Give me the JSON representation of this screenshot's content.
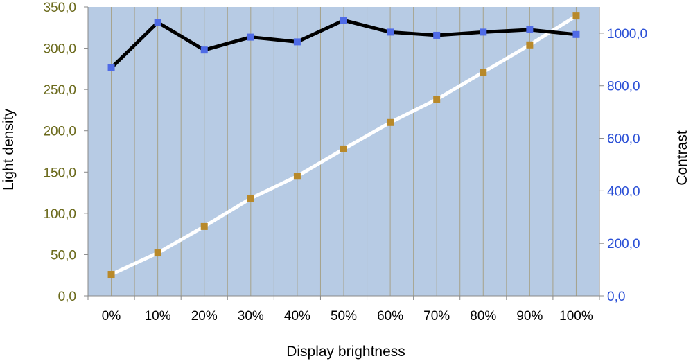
{
  "chart_data": {
    "type": "line",
    "xlabel": "Display brightness",
    "ylabel_left": "Light density",
    "ylabel_right": "Contrast",
    "categories": [
      "0%",
      "10%",
      "20%",
      "30%",
      "40%",
      "50%",
      "60%",
      "70%",
      "80%",
      "90%",
      "100%"
    ],
    "y_left": {
      "range": [
        0,
        350
      ],
      "ticks": [
        0,
        50,
        100,
        150,
        200,
        250,
        300,
        350
      ],
      "tick_labels": [
        "0,0",
        "50,0",
        "100,0",
        "150,0",
        "200,0",
        "250,0",
        "300,0",
        "350,0"
      ],
      "color": "#6b6a1c"
    },
    "y_right": {
      "range": [
        0,
        1100
      ],
      "ticks": [
        0,
        200,
        400,
        600,
        800,
        1000
      ],
      "tick_labels": [
        "0,0",
        "200,0",
        "400,0",
        "600,0",
        "800,0",
        "1000,0"
      ],
      "color": "#2a4fd6"
    },
    "series": [
      {
        "axis": "left",
        "line_color": "#ffffff",
        "marker_color": "#b8892a",
        "values": [
          26,
          52,
          84,
          118,
          145,
          178,
          210,
          238,
          271,
          304,
          339
        ]
      },
      {
        "axis": "right",
        "line_color": "#000000",
        "marker_color": "#4f6be6",
        "values": [
          868,
          1041,
          936,
          985,
          967,
          1049,
          1004,
          992,
          1004,
          1013,
          995
        ]
      }
    ],
    "plot_background": "#b7cbe4",
    "grid": true
  }
}
